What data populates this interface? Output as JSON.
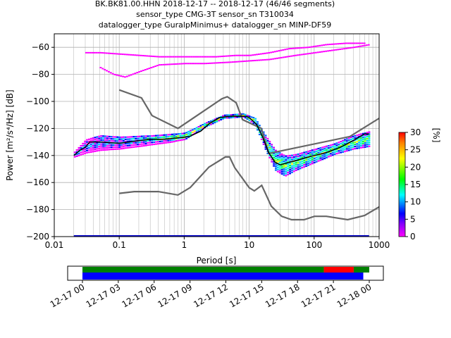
{
  "title_lines": [
    "BK.BK81.00.HHN   2018-12-17 -- 2018-12-17  (46/46 segments)",
    "sensor_type CMG-3T sensor_sn T310034",
    "datalogger_type GuralpMinimus+ datalogger_sn MINP-DF59"
  ],
  "colorbar": {
    "label": "[%]",
    "ticks": [
      "0",
      "5",
      "10",
      "15",
      "20",
      "25",
      "30"
    ],
    "range": [
      0,
      30
    ]
  },
  "chart_data": [
    {
      "type": "heatmap",
      "title": "BK.BK81.00.HHN   2018-12-17 -- 2018-12-17  (46/46 segments)",
      "subtitle": "sensor_type CMG-3T sensor_sn T310034 / datalogger_type GuralpMinimus+ datalogger_sn MINP-DF59",
      "xlabel": "Period [s]",
      "ylabel": "Power [m²/s⁴/Hz] [dB]",
      "xscale": "log",
      "xlim": [
        0.01,
        1000
      ],
      "ylim": [
        -200,
        -50
      ],
      "xticks": [
        0.01,
        0.1,
        1,
        10,
        100,
        1000
      ],
      "xtick_labels": [
        "0.01",
        "0.1",
        "1",
        "10",
        "100",
        "1000"
      ],
      "yticks": [
        -200,
        -180,
        -160,
        -140,
        -120,
        -100,
        -80,
        -60
      ],
      "ytick_labels": [
        "−200",
        "−180",
        "−160",
        "−140",
        "−120",
        "−100",
        "−80",
        "−60"
      ],
      "grid": true,
      "mode_curve": {
        "name": "mode",
        "x": [
          0.02,
          0.025,
          0.03,
          0.035,
          0.05,
          0.1,
          0.2,
          0.3,
          0.5,
          0.8,
          1.2,
          1.8,
          2.5,
          3.5,
          5,
          7,
          9,
          10,
          13,
          16,
          20,
          25,
          30,
          35,
          50,
          70,
          100,
          150,
          250,
          400,
          600,
          700
        ],
        "y": [
          -140,
          -136,
          -134,
          -130,
          -130,
          -131,
          -129,
          -128,
          -128,
          -127,
          -126,
          -122,
          -116,
          -112,
          -111,
          -111,
          -111,
          -112,
          -117,
          -126,
          -138,
          -145,
          -147,
          -146,
          -144,
          -142,
          -140,
          -138,
          -134,
          -129,
          -124,
          -124
        ]
      },
      "noise_models": [
        {
          "name": "NHNM",
          "x": [
            0.1,
            0.22,
            0.32,
            0.8,
            3.8,
            4.6,
            6.3,
            7.9,
            15.4,
            20,
            354.8,
            1000
          ],
          "y": [
            -91.5,
            -97.4,
            -110.5,
            -120,
            -98,
            -96.5,
            -101,
            -113.5,
            -120,
            -138.5,
            -126,
            -112.5
          ]
        },
        {
          "name": "NLNM",
          "x": [
            0.1,
            0.17,
            0.4,
            0.8,
            1.24,
            2.4,
            4.3,
            5,
            6,
            10,
            12,
            15.6,
            21.9,
            31.6,
            45,
            70,
            101,
            154,
            328,
            600,
            1000
          ],
          "y": [
            -168,
            -166.7,
            -166.7,
            -169.2,
            -163.7,
            -148.6,
            -141.1,
            -141.1,
            -149,
            -163.8,
            -166.2,
            -162.1,
            -177.5,
            -185,
            -187.5,
            -187.5,
            -185,
            -185,
            -187.5,
            -184.4,
            -178
          ]
        }
      ],
      "density_bands": [
        {
          "name": "lower band",
          "x": [
            0.02,
            0.03,
            0.05,
            0.1,
            0.3,
            0.6,
            1,
            2,
            4,
            8,
            12,
            18,
            25,
            35,
            50,
            100,
            200,
            400,
            700
          ],
          "y": [
            -142,
            -139,
            -137,
            -136,
            -133,
            -131,
            -129,
            -120,
            -113,
            -112,
            -118,
            -138,
            -152,
            -156,
            -152,
            -146,
            -140,
            -136,
            -134
          ]
        },
        {
          "name": "upper band",
          "x": [
            0.02,
            0.03,
            0.05,
            0.1,
            0.3,
            0.6,
            1,
            2,
            4,
            8,
            12,
            18,
            25,
            35,
            50,
            100,
            200,
            400,
            700
          ],
          "y": [
            -137,
            -128,
            -125,
            -126,
            -125,
            -124,
            -123,
            -116,
            -110,
            -109,
            -112,
            -126,
            -136,
            -140,
            -139,
            -135,
            -131,
            -125,
            -122
          ]
        },
        {
          "name": "high outliers",
          "x": [
            0.03,
            0.05,
            0.1,
            0.2,
            0.4,
            0.8,
            1.5,
            3,
            6,
            10,
            20,
            40,
            80,
            150,
            300,
            600
          ],
          "y": [
            -64,
            -64,
            -65,
            -66,
            -67,
            -67,
            -67,
            -67,
            -66,
            -66,
            -64,
            -61,
            -60,
            -58,
            -57,
            -57
          ]
        },
        {
          "name": "secondary outliers",
          "x": [
            0.05,
            0.08,
            0.12,
            0.2,
            0.4,
            1,
            2,
            5,
            10,
            20,
            50,
            100,
            200,
            400,
            700
          ],
          "y": [
            -75,
            -80,
            -82,
            -78,
            -73,
            -72,
            -72,
            -71,
            -70,
            -69,
            -66,
            -64,
            -62,
            -60,
            -58
          ]
        }
      ]
    },
    {
      "type": "bar",
      "xlabel": "",
      "ylabel": "",
      "xtick_labels": [
        "12-17 00",
        "12-17 03",
        "12-17 06",
        "12-17 09",
        "12-17 12",
        "12-17 15",
        "12-17 18",
        "12-17 21",
        "12-18 00"
      ],
      "series": [
        {
          "start_hours": 0,
          "end_hours": 20.2,
          "color": "#008000"
        },
        {
          "start_hours": 20.2,
          "end_hours": 22.7,
          "color": "#ff0000"
        },
        {
          "start_hours": 22.7,
          "end_hours": 24,
          "color": "#008000"
        },
        {
          "start_hours": 0,
          "end_hours": 23.5,
          "color": "#0000ff"
        }
      ]
    }
  ]
}
